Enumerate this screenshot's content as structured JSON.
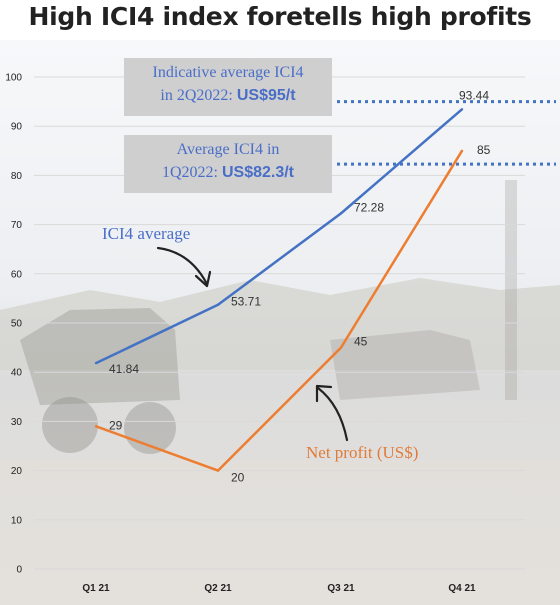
{
  "chart_data": {
    "type": "line",
    "title": "High ICI4 index foretells high profits",
    "categories": [
      "Q1 21",
      "Q2 21",
      "Q3 21",
      "Q4 21"
    ],
    "series": [
      {
        "name": "ICI4 average",
        "values": [
          41.84,
          53.71,
          72.28,
          93.44
        ],
        "color": "#4472c4"
      },
      {
        "name": "Net profit (US$)",
        "values": [
          29,
          20,
          45,
          85
        ],
        "color": "#ed7d31"
      }
    ],
    "data_labels": [
      [
        "41.84",
        "53.71",
        "72.28",
        "93.44"
      ],
      [
        "29",
        "20",
        "45",
        "85"
      ]
    ],
    "ylim": [
      0,
      100
    ],
    "yticks": [
      0,
      10,
      20,
      30,
      40,
      50,
      60,
      70,
      80,
      90,
      100
    ],
    "grid": true,
    "reference_lines": [
      {
        "value": 95,
        "color": "#4472c4",
        "style": "dotted"
      },
      {
        "value": 82.3,
        "color": "#4472c4",
        "style": "dotted"
      }
    ],
    "annotations": [
      {
        "line1": "Indicative average ICI4",
        "line2_text": "in 2Q2022: ",
        "line2_value": "US$95/t"
      },
      {
        "line1": "Average ICI4 in",
        "line2_text": "1Q2022: ",
        "line2_value": "US$82.3/t"
      }
    ]
  }
}
